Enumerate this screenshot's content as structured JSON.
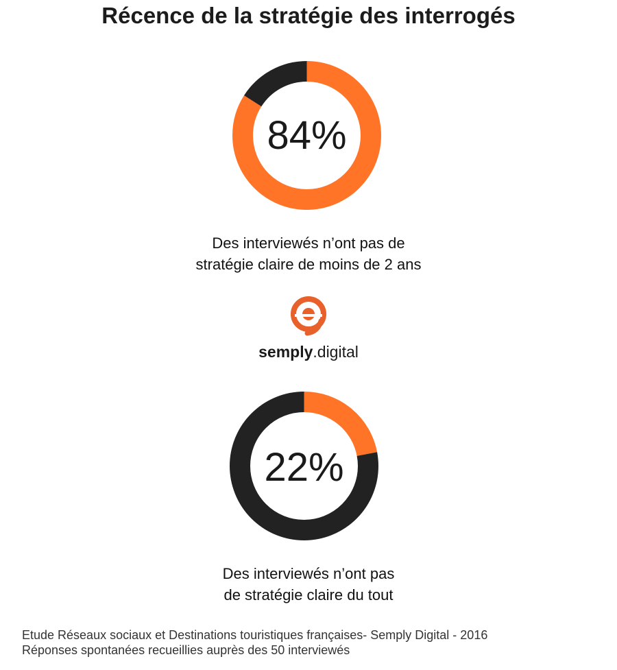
{
  "title": "Récence de la stratégie des interrogés",
  "colors": {
    "accent": "#ff7426",
    "dark": "#222222"
  },
  "chart_data": [
    {
      "type": "pie",
      "value_label": "84%",
      "values": [
        84,
        16
      ],
      "caption": [
        "Des interviewés n’ont pas de",
        "stratégie claire de moins de 2 ans"
      ]
    },
    {
      "type": "pie",
      "value_label": "22%",
      "values": [
        22,
        78
      ],
      "caption": [
        "Des interviewés n’ont pas",
        "de stratégie claire du tout"
      ]
    }
  ],
  "logo": {
    "name_bold": "semply",
    "name_rest": ".digital",
    "icon": "semply-logo-icon"
  },
  "footer": [
    "Etude Réseaux sociaux et Destinations touristiques françaises- Semply Digital - 2016",
    "Réponses spontanées recueillies auprès des 50 interviewés"
  ]
}
